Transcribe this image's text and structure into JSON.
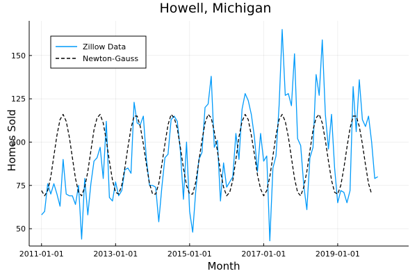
{
  "chart_data": {
    "type": "line",
    "title": "Howell, Michigan",
    "xlabel": "Month",
    "ylabel": "Homes Sold",
    "x_start": "2011-01-01",
    "x_frequency": "monthly",
    "xlim": [
      "2010-09-01",
      "2020-12-01"
    ],
    "ylim": [
      40,
      170
    ],
    "xticks": [
      "2011-01-01",
      "2013-01-01",
      "2015-01-01",
      "2017-01-01",
      "2019-01-01"
    ],
    "yticks": [
      50,
      75,
      100,
      125,
      150
    ],
    "grid": true,
    "legend_position": "top-left",
    "series": [
      {
        "name": "Zillow Data",
        "color": "#009AFA",
        "style": "solid",
        "values": [
          58,
          60,
          76,
          70,
          76,
          70,
          63,
          90,
          70,
          69,
          69,
          64,
          75,
          44,
          79,
          58,
          76,
          89,
          91,
          97,
          79,
          112,
          68,
          66,
          77,
          69,
          72,
          84,
          85,
          82,
          123,
          111,
          110,
          115,
          90,
          75,
          75,
          74,
          54,
          74,
          91,
          93,
          113,
          115,
          112,
          95,
          67,
          100,
          60,
          48,
          72,
          90,
          94,
          120,
          122,
          138,
          97,
          101,
          66,
          88,
          74,
          77,
          80,
          105,
          90,
          119,
          128,
          124,
          116,
          103,
          83,
          105,
          89,
          92,
          43,
          85,
          92,
          121,
          165,
          127,
          128,
          121,
          151,
          102,
          98,
          75,
          61,
          91,
          97,
          139,
          127,
          159,
          116,
          96,
          116,
          85,
          65,
          72,
          71,
          65,
          72,
          132,
          106,
          136,
          113,
          109,
          115,
          100,
          79,
          80
        ]
      },
      {
        "name": "Newton-Gauss",
        "color": "#000000",
        "style": "dashed",
        "values": [
          72,
          69,
          72,
          80,
          92,
          104,
          113,
          116,
          112,
          103,
          91,
          79,
          71,
          69,
          74,
          83,
          95,
          107,
          114,
          116,
          111,
          101,
          89,
          78,
          71,
          70,
          75,
          85,
          97,
          108,
          115,
          115,
          109,
          99,
          87,
          76,
          70,
          70,
          76,
          87,
          99,
          110,
          116,
          114,
          108,
          97,
          85,
          75,
          70,
          70,
          77,
          89,
          101,
          111,
          116,
          114,
          106,
          95,
          83,
          74,
          69,
          71,
          78,
          90,
          103,
          112,
          116,
          113,
          104,
          93,
          81,
          73,
          69,
          72,
          80,
          92,
          104,
          113,
          116,
          112,
          103,
          91,
          79,
          71,
          69,
          74,
          83,
          95,
          107,
          114,
          116,
          111,
          101,
          89,
          78,
          71,
          70,
          75,
          85,
          97,
          108,
          115,
          115,
          109,
          99,
          87,
          76,
          70
        ]
      }
    ]
  }
}
